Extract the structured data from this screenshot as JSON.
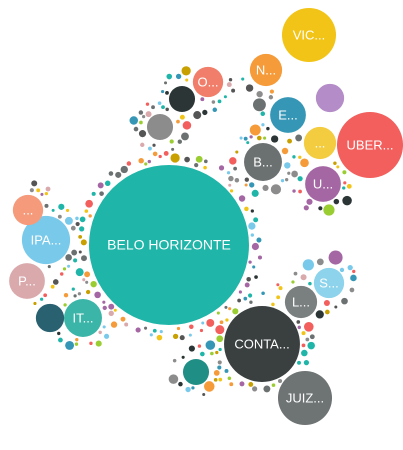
{
  "chart_data": {
    "type": "bubble",
    "categories": [
      "BELO HORIZONTE",
      "CONTA...",
      "UBER...",
      "JUIZ...",
      "VIC...",
      "IPA...",
      "IT...",
      "B...",
      "P...",
      "E...",
      "U...",
      "L...",
      "S...",
      "N...",
      "O...",
      "...",
      "...",
      null,
      null,
      null,
      null,
      null
    ],
    "values": [
      640,
      144,
      109,
      73,
      73,
      58,
      36,
      36,
      32,
      32,
      32,
      26,
      23,
      26,
      23,
      23,
      26,
      17,
      17,
      20,
      17,
      20
    ],
    "colors": [
      "#1fb5a8",
      "#3a3f3f",
      "#f25f5c",
      "#6e7373",
      "#f2c417",
      "#79c9ea",
      "#3bb5a8",
      "#6b7070",
      "#d9a9ac",
      "#3596b6",
      "#a467a4",
      "#7a7f7f",
      "#8dd3ec",
      "#f59b3a",
      "#f07e6a",
      "#f59a7a",
      "#f3cc3f",
      "#2b3535",
      "#8c8c8c",
      "#b48cc7",
      "#1f8f86",
      "#2a6171"
    ]
  }
}
